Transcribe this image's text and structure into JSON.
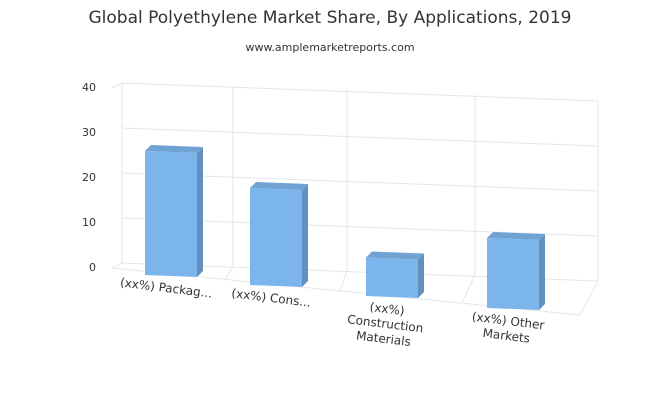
{
  "chart_data": {
    "type": "bar3d",
    "title": "Global Polyethylene Market Share, By Applications, 2019",
    "subtitle": "www.amplemarketreports.com",
    "categories": [
      "(xx%) Packag...",
      "(xx%) Cons...",
      "(xx%) Construction Materials",
      "(xx%) Other Markets"
    ],
    "values": [
      28,
      22,
      9,
      16
    ],
    "color": "#7cb5ec",
    "ylim": [
      0,
      40
    ],
    "yticks": [
      0,
      10,
      20,
      30,
      40
    ],
    "grid": true
  }
}
